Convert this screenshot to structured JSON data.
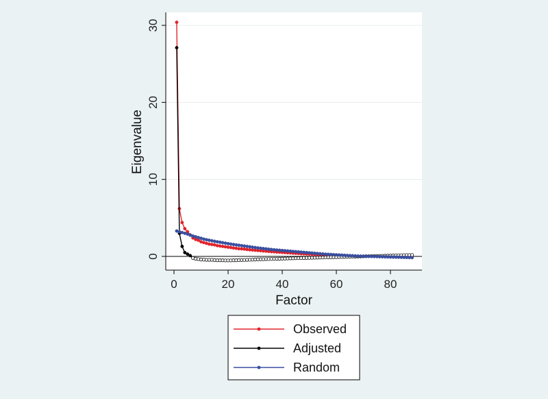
{
  "chart_data": {
    "type": "line",
    "title": "",
    "xlabel": "Factor",
    "ylabel": "Eigenvalue",
    "xlim": [
      0,
      88
    ],
    "ylim": [
      -1.6,
      32
    ],
    "xticks": [
      0,
      20,
      40,
      60,
      80
    ],
    "yticks": [
      0,
      10,
      20,
      30
    ],
    "grid": true,
    "legend_position": "bottom",
    "series": [
      {
        "name": "Observed",
        "color": "#e0242c",
        "x": [
          1,
          2,
          3,
          4,
          5,
          6,
          7,
          8,
          9,
          10,
          11,
          12,
          13,
          14,
          15,
          16,
          17,
          18,
          19,
          20,
          21,
          22,
          23,
          24,
          25,
          26,
          27,
          28,
          29,
          30,
          31,
          32,
          33,
          34,
          35,
          36,
          37,
          38,
          39,
          40,
          41,
          42,
          43,
          44,
          45,
          46,
          47,
          48,
          49,
          50,
          51,
          52,
          53,
          54,
          55,
          56,
          57,
          58,
          59,
          60,
          61,
          62,
          63,
          64,
          65,
          66,
          67,
          68,
          69,
          70,
          71,
          72,
          73,
          74,
          75,
          76,
          77,
          78,
          79,
          80,
          81,
          82,
          83,
          84,
          85,
          86,
          87,
          88
        ],
        "values": [
          30.4,
          6.2,
          4.4,
          3.6,
          3.2,
          2.8,
          2.4,
          2.2,
          2.1,
          1.9,
          1.8,
          1.7,
          1.6,
          1.55,
          1.5,
          1.4,
          1.35,
          1.3,
          1.25,
          1.2,
          1.15,
          1.1,
          1.05,
          1.0,
          0.98,
          0.95,
          0.9,
          0.86,
          0.83,
          0.8,
          0.77,
          0.74,
          0.71,
          0.68,
          0.65,
          0.62,
          0.6,
          0.57,
          0.55,
          0.52,
          0.5,
          0.47,
          0.45,
          0.42,
          0.4,
          0.38,
          0.35,
          0.33,
          0.31,
          0.29,
          0.27,
          0.25,
          0.23,
          0.21,
          0.19,
          0.17,
          0.15,
          0.14,
          0.12,
          0.1,
          0.09,
          0.08,
          0.07,
          0.06,
          0.05,
          0.04,
          0.04,
          0.03,
          0.03,
          0.02,
          0.02,
          0.02,
          0.01,
          0.01,
          0.01,
          0.0,
          0.0,
          0.0,
          0.0,
          0.0,
          0.0,
          0.0,
          0.0,
          0.0,
          0.0,
          0.0,
          0.0,
          0.0
        ]
      },
      {
        "name": "Adjusted",
        "color": "#000000",
        "x": [
          1,
          2,
          3,
          4,
          5,
          6,
          7,
          8,
          9,
          10,
          11,
          12,
          13,
          14,
          15,
          16,
          17,
          18,
          19,
          20,
          21,
          22,
          23,
          24,
          25,
          26,
          27,
          28,
          29,
          30,
          31,
          32,
          33,
          34,
          35,
          36,
          37,
          38,
          39,
          40,
          41,
          42,
          43,
          44,
          45,
          46,
          47,
          48,
          49,
          50,
          51,
          52,
          53,
          54,
          55,
          56,
          57,
          58,
          59,
          60,
          61,
          62,
          63,
          64,
          65,
          66,
          67,
          68,
          69,
          70,
          71,
          72,
          73,
          74,
          75,
          76,
          77,
          78,
          79,
          80,
          81,
          82,
          83,
          84,
          85,
          86,
          87,
          88
        ],
        "values": [
          27.1,
          3.0,
          1.3,
          0.5,
          0.3,
          0.1,
          -0.2,
          -0.3,
          -0.35,
          -0.4,
          -0.42,
          -0.45,
          -0.45,
          -0.45,
          -0.48,
          -0.5,
          -0.5,
          -0.5,
          -0.52,
          -0.52,
          -0.52,
          -0.5,
          -0.5,
          -0.48,
          -0.47,
          -0.46,
          -0.45,
          -0.44,
          -0.42,
          -0.4,
          -0.38,
          -0.37,
          -0.36,
          -0.35,
          -0.34,
          -0.33,
          -0.32,
          -0.31,
          -0.3,
          -0.29,
          -0.28,
          -0.27,
          -0.26,
          -0.25,
          -0.24,
          -0.23,
          -0.22,
          -0.21,
          -0.2,
          -0.19,
          -0.18,
          -0.17,
          -0.16,
          -0.15,
          -0.14,
          -0.13,
          -0.12,
          -0.11,
          -0.1,
          -0.09,
          -0.08,
          -0.07,
          -0.06,
          -0.05,
          -0.04,
          -0.03,
          -0.02,
          -0.01,
          0.0,
          0.01,
          0.02,
          0.03,
          0.04,
          0.05,
          0.06,
          0.07,
          0.08,
          0.09,
          0.1,
          0.11,
          0.12,
          0.13,
          0.14,
          0.15,
          0.16,
          0.17,
          0.17,
          0.18
        ]
      },
      {
        "name": "Random",
        "color": "#3a4fa0",
        "x": [
          1,
          2,
          3,
          4,
          5,
          6,
          7,
          8,
          9,
          10,
          11,
          12,
          13,
          14,
          15,
          16,
          17,
          18,
          19,
          20,
          21,
          22,
          23,
          24,
          25,
          26,
          27,
          28,
          29,
          30,
          31,
          32,
          33,
          34,
          35,
          36,
          37,
          38,
          39,
          40,
          41,
          42,
          43,
          44,
          45,
          46,
          47,
          48,
          49,
          50,
          51,
          52,
          53,
          54,
          55,
          56,
          57,
          58,
          59,
          60,
          61,
          62,
          63,
          64,
          65,
          66,
          67,
          68,
          69,
          70,
          71,
          72,
          73,
          74,
          75,
          76,
          77,
          78,
          79,
          80,
          81,
          82,
          83,
          84,
          85,
          86,
          87,
          88
        ],
        "values": [
          3.3,
          3.2,
          3.1,
          3.0,
          2.9,
          2.75,
          2.65,
          2.55,
          2.45,
          2.35,
          2.25,
          2.17,
          2.1,
          2.03,
          1.96,
          1.9,
          1.84,
          1.78,
          1.72,
          1.66,
          1.6,
          1.55,
          1.5,
          1.45,
          1.4,
          1.35,
          1.3,
          1.25,
          1.2,
          1.15,
          1.1,
          1.06,
          1.02,
          0.98,
          0.94,
          0.9,
          0.86,
          0.83,
          0.8,
          0.77,
          0.74,
          0.71,
          0.68,
          0.65,
          0.62,
          0.59,
          0.56,
          0.53,
          0.5,
          0.47,
          0.44,
          0.41,
          0.38,
          0.35,
          0.32,
          0.29,
          0.27,
          0.25,
          0.23,
          0.21,
          0.19,
          0.17,
          0.15,
          0.13,
          0.11,
          0.09,
          0.07,
          0.05,
          0.03,
          0.02,
          0.01,
          0.0,
          -0.01,
          -0.02,
          -0.03,
          -0.04,
          -0.05,
          -0.06,
          -0.07,
          -0.08,
          -0.09,
          -0.1,
          -0.11,
          -0.12,
          -0.13,
          -0.14,
          -0.15,
          -0.16
        ]
      }
    ]
  }
}
